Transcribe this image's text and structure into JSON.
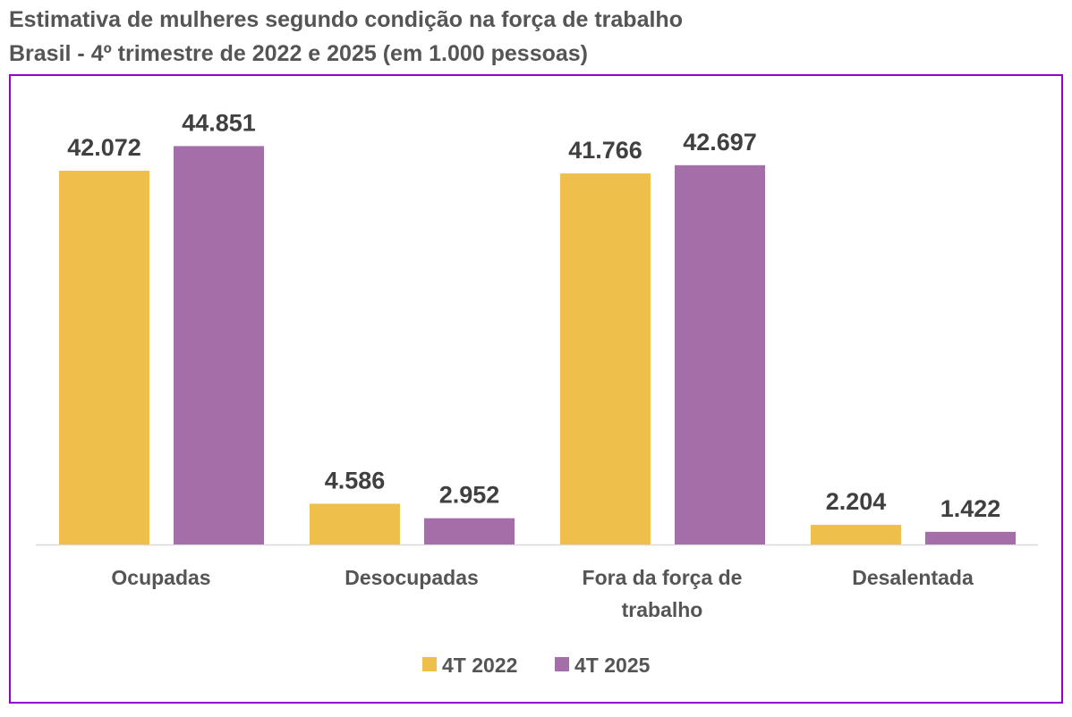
{
  "chart_data": {
    "type": "bar",
    "title": "Estimativa de mulheres segundo condição na força de trabalho",
    "subtitle": "Brasil - 4º trimestre de 2022 e 2025 (em 1.000 pessoas)",
    "categories": [
      [
        "Ocupadas"
      ],
      [
        "Desocupadas"
      ],
      [
        "Fora da força de",
        "trabalho"
      ],
      [
        "Desalentada"
      ]
    ],
    "series": [
      {
        "name": "4T 2022",
        "color": "#EFBF4B",
        "values": [
          42072,
          4586,
          41766,
          2204
        ],
        "labels": [
          "42.072",
          "4.586",
          "41.766",
          "2.204"
        ]
      },
      {
        "name": "4T 2025",
        "color": "#A46FA8",
        "values": [
          44851,
          2952,
          42697,
          1422
        ],
        "labels": [
          "44.851",
          "2.952",
          "42.697",
          "1.422"
        ]
      }
    ],
    "ylim": [
      0,
      53000
    ],
    "grid": false,
    "legend": "bottom",
    "border_color": "#9900CC"
  }
}
